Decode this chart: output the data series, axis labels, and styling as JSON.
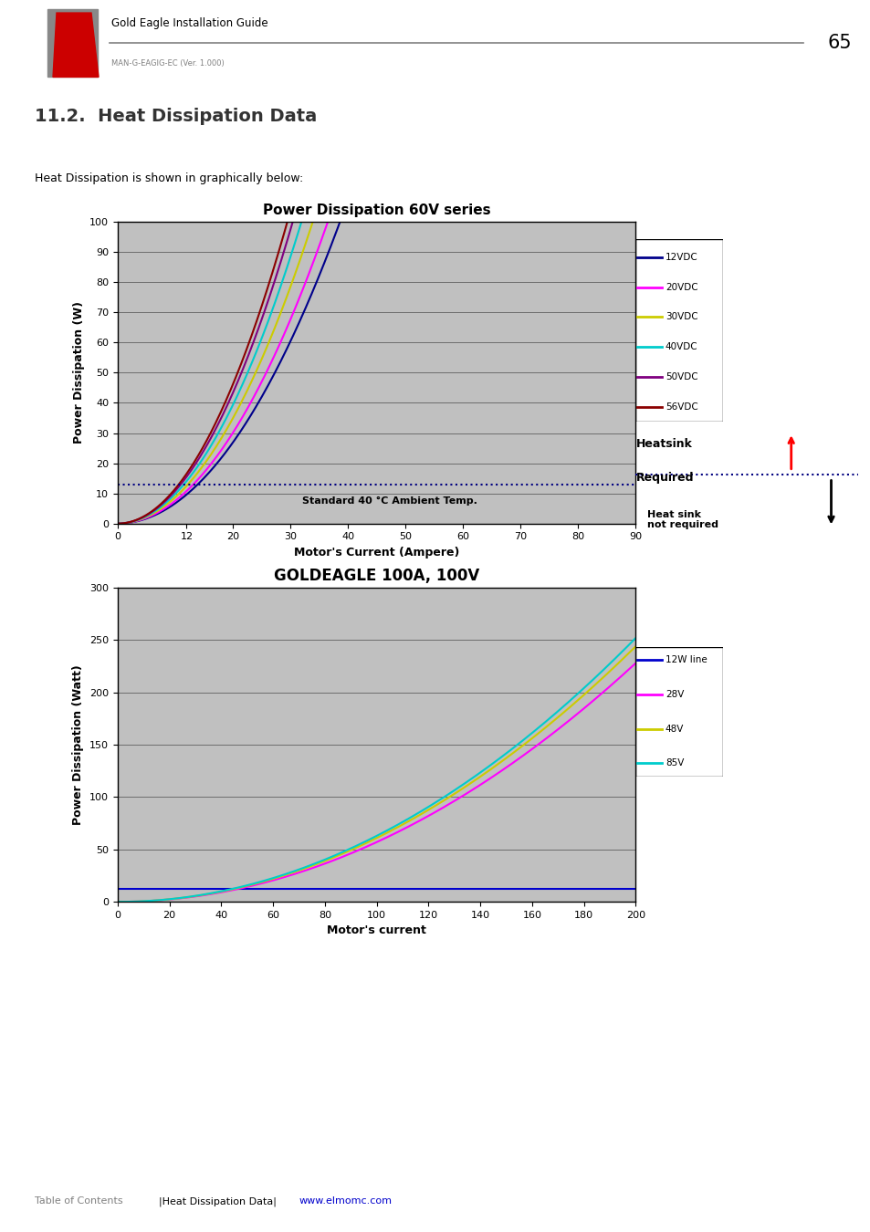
{
  "page_title": "Gold Eagle Installation Guide",
  "page_subtitle": "MAN-G-EAGIG-EC (Ver. 1.000)",
  "page_number": "65",
  "section_title": "11.2.  Heat Dissipation Data",
  "section_subtitle": "Heat Dissipation is shown in graphically below:",
  "chart1": {
    "title": "Power Dissipation 60V series",
    "xlabel": "Motor's Current (Ampere)",
    "ylabel": "Power Dissipation (W)",
    "xlim": [
      0,
      90
    ],
    "ylim": [
      0,
      100
    ],
    "xticks": [
      0,
      12,
      20,
      30,
      40,
      50,
      60,
      70,
      80,
      90
    ],
    "yticks": [
      0,
      10,
      20,
      30,
      40,
      50,
      60,
      70,
      80,
      90,
      100
    ],
    "series": [
      {
        "label": "12VDC",
        "color": "#00008B",
        "a": 0.0067
      },
      {
        "label": "20VDC",
        "color": "#FF00FF",
        "a": 0.0075
      },
      {
        "label": "30VDC",
        "color": "#CCCC00",
        "a": 0.0087
      },
      {
        "label": "40VDC",
        "color": "#00CCCC",
        "a": 0.0098
      },
      {
        "label": "50VDC",
        "color": "#800080",
        "a": 0.0108
      },
      {
        "label": "56VDC",
        "color": "#8B0000",
        "a": 0.0115
      }
    ],
    "heatsink_line_y": 13,
    "ambient_label": "Standard 40 °C Ambient Temp.",
    "background_color": "#C0C0C0"
  },
  "chart2": {
    "title": "GOLDEAGLE 100A, 100V",
    "xlabel": "Motor's current",
    "ylabel": "Power Dissipation (Watt)",
    "xlim": [
      0,
      200
    ],
    "ylim": [
      0,
      300
    ],
    "xticks": [
      0,
      20,
      40,
      60,
      80,
      100,
      120,
      140,
      160,
      180,
      200
    ],
    "yticks": [
      0,
      50,
      100,
      150,
      200,
      250,
      300
    ],
    "series": [
      {
        "label": "12W line",
        "color": "#0000CD",
        "a": 0.0,
        "c": 12.0
      },
      {
        "label": "28V",
        "color": "#FF00FF",
        "a": 0.0057,
        "c": 0.0
      },
      {
        "label": "48V",
        "color": "#CCCC00",
        "a": 0.0061,
        "c": 0.0
      },
      {
        "label": "85V",
        "color": "#00CCCC",
        "a": 0.0063,
        "c": 0.0
      }
    ],
    "background_color": "#C0C0C0"
  },
  "footer_text": "Table of Contents",
  "footer_link1": "|Heat Dissipation Data|",
  "footer_link2": "www.elmomc.com"
}
